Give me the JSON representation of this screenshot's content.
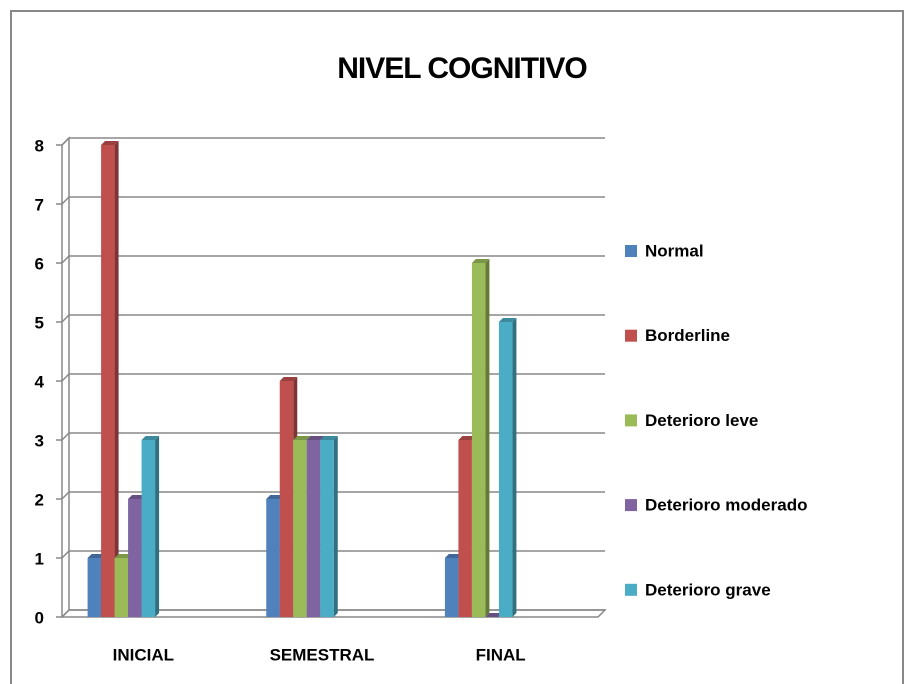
{
  "chart_data": {
    "type": "bar",
    "title": "NIVEL COGNITIVO",
    "categories": [
      "INICIAL",
      "SEMESTRAL",
      "FINAL"
    ],
    "series": [
      {
        "name": "Normal",
        "color": "#4f81bd",
        "values": [
          1,
          2,
          1
        ]
      },
      {
        "name": "Borderline",
        "color": "#c0504d",
        "values": [
          8,
          4,
          3
        ]
      },
      {
        "name": "Deterioro leve",
        "color": "#9bbb59",
        "values": [
          1,
          3,
          6
        ]
      },
      {
        "name": "Deterioro moderado",
        "color": "#8064a2",
        "values": [
          2,
          3,
          0
        ]
      },
      {
        "name": "Deterioro grave",
        "color": "#4bacc6",
        "values": [
          3,
          3,
          5
        ]
      }
    ],
    "ylim": [
      0,
      8
    ],
    "yticks": [
      0,
      1,
      2,
      3,
      4,
      5,
      6,
      7,
      8
    ],
    "grid": true,
    "legend": "right"
  }
}
